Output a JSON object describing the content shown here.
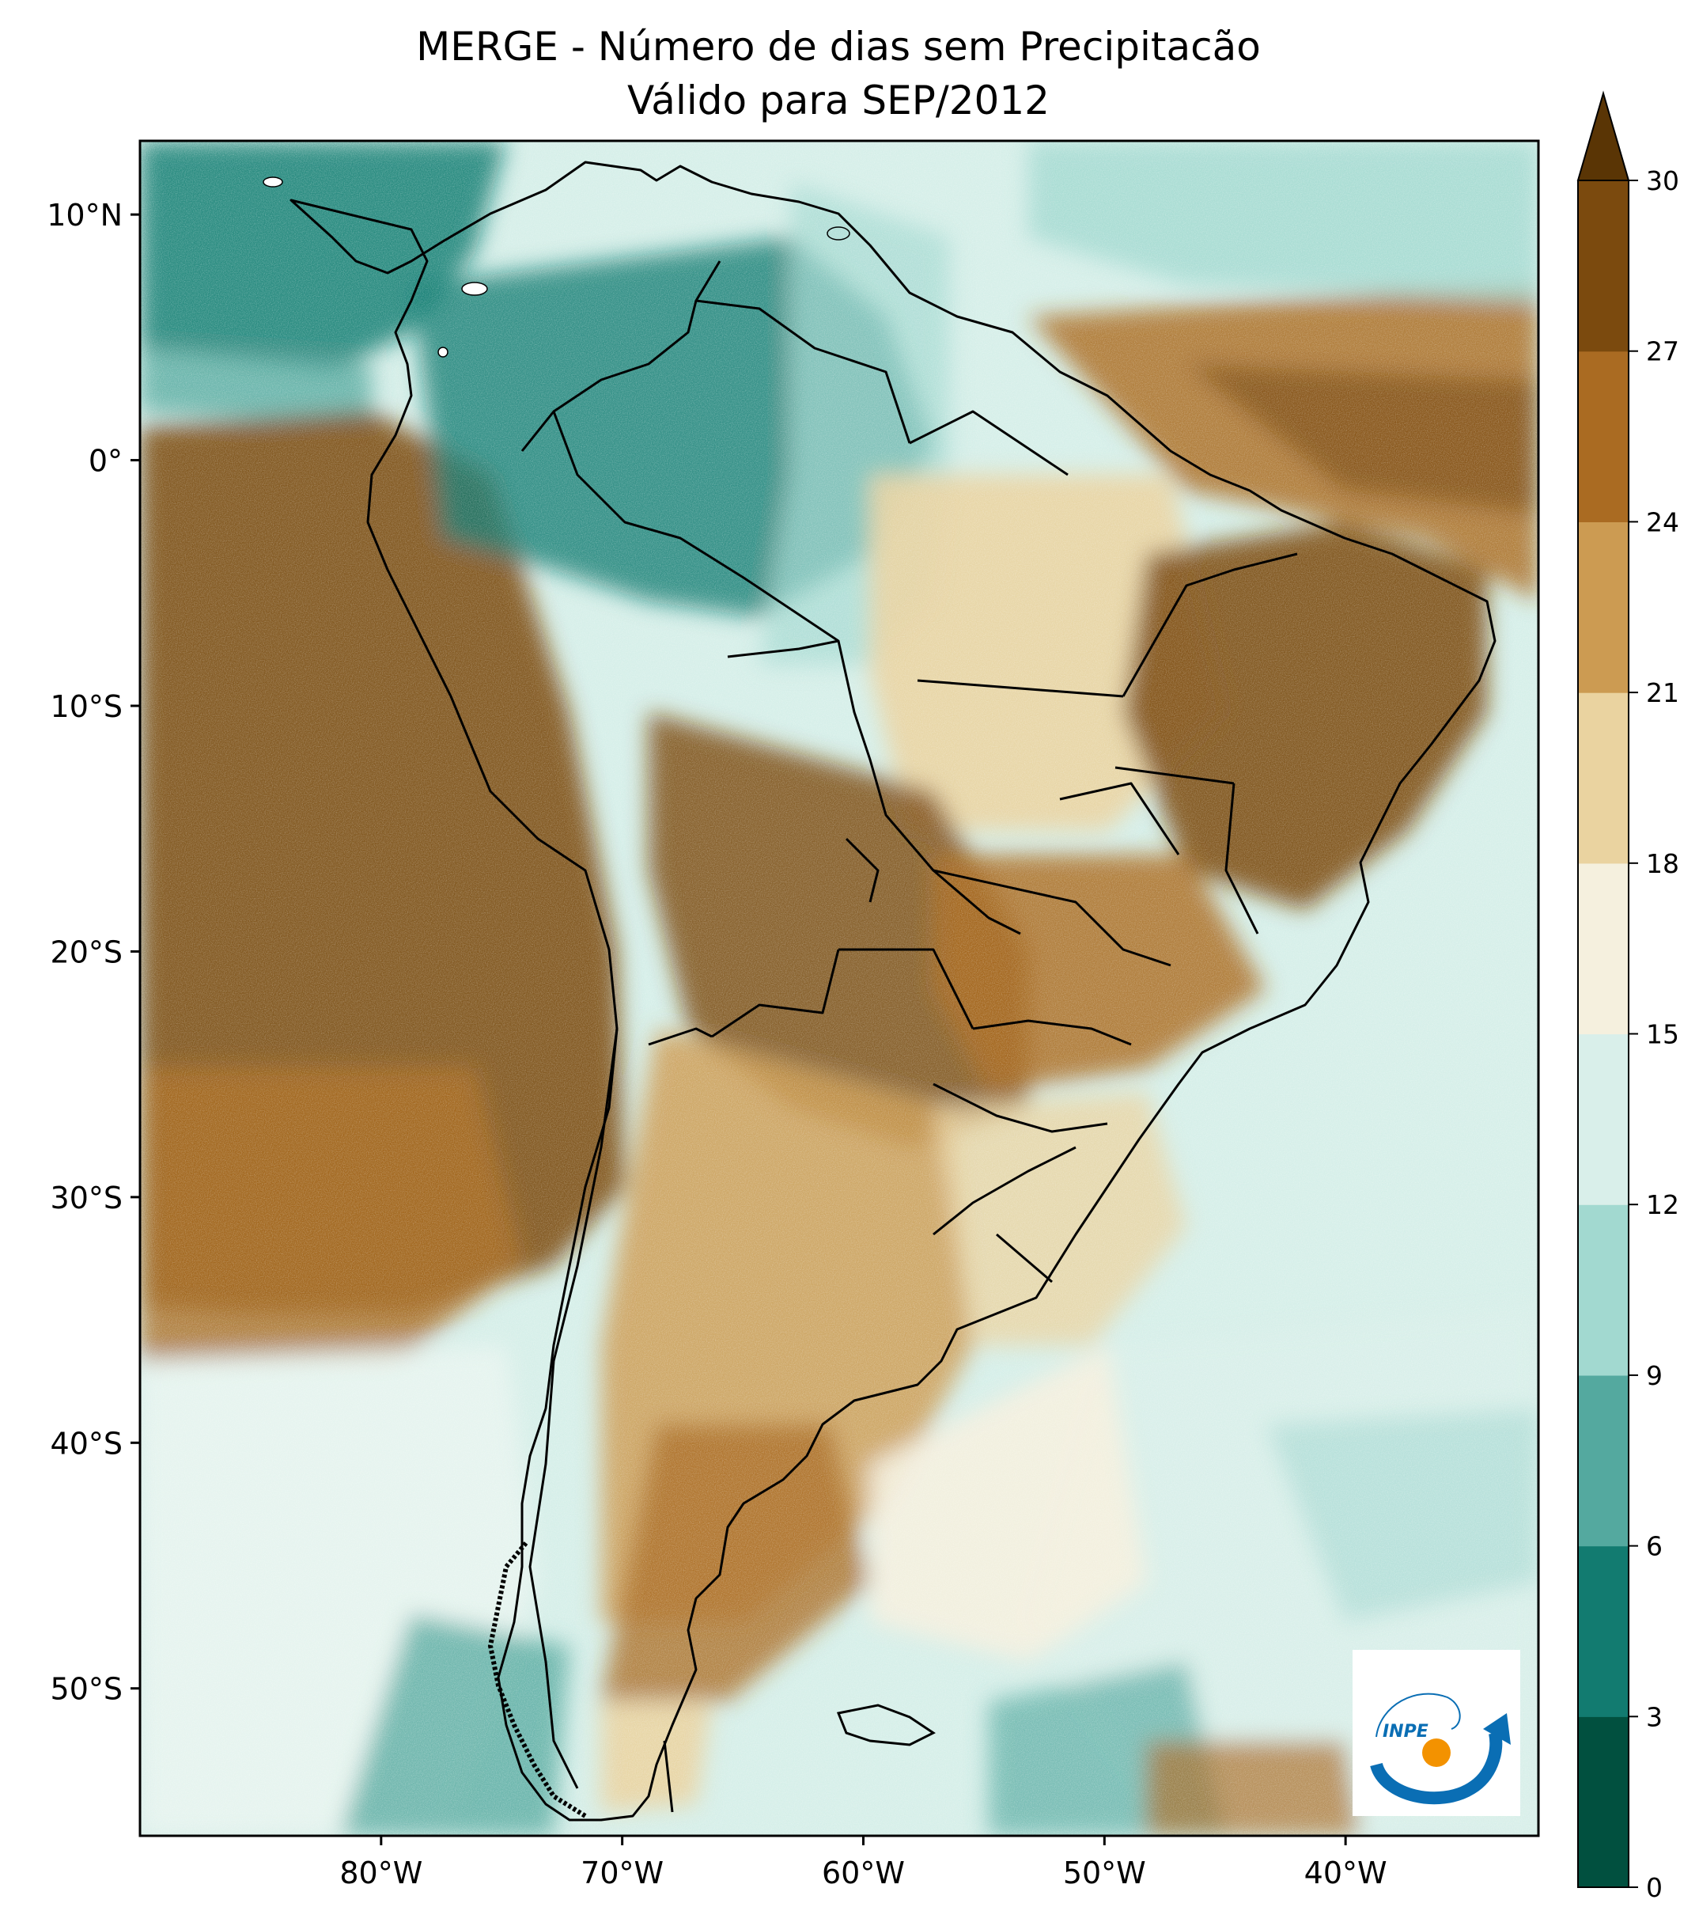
{
  "title": "MERGE - Número de dias sem Precipitacão",
  "subtitle": "Válido para SEP/2012",
  "map": {
    "region": "South America",
    "lon_range": [
      -90,
      -32
    ],
    "lat_range": [
      -56,
      13
    ],
    "lon_ticks": [
      {
        "value": -80,
        "label": "80°W"
      },
      {
        "value": -70,
        "label": "70°W"
      },
      {
        "value": -60,
        "label": "60°W"
      },
      {
        "value": -50,
        "label": "50°W"
      },
      {
        "value": -40,
        "label": "40°W"
      }
    ],
    "lat_ticks": [
      {
        "value": 10,
        "label": "10°N"
      },
      {
        "value": 0,
        "label": "0°"
      },
      {
        "value": -10,
        "label": "10°S"
      },
      {
        "value": -20,
        "label": "20°S"
      },
      {
        "value": -30,
        "label": "30°S"
      },
      {
        "value": -40,
        "label": "40°S"
      },
      {
        "value": -50,
        "label": "50°S"
      }
    ],
    "ocean_color": "#d6efe9"
  },
  "colorbar": {
    "ticks": [
      "0",
      "3",
      "6",
      "9",
      "12",
      "15",
      "18",
      "21",
      "24",
      "27",
      "30"
    ],
    "colors": [
      "#01503f",
      "#127b70",
      "#54a99f",
      "#a2d9d0",
      "#d9efea",
      "#f5f0de",
      "#ead3a0",
      "#cc9b52",
      "#aa6b22",
      "#7b4a0e"
    ],
    "extend_color": "#5a3505",
    "extend": "max"
  },
  "logo": {
    "text": "INPE",
    "colors": {
      "swoosh": "#0a6eb4",
      "dot": "#f39200"
    }
  }
}
